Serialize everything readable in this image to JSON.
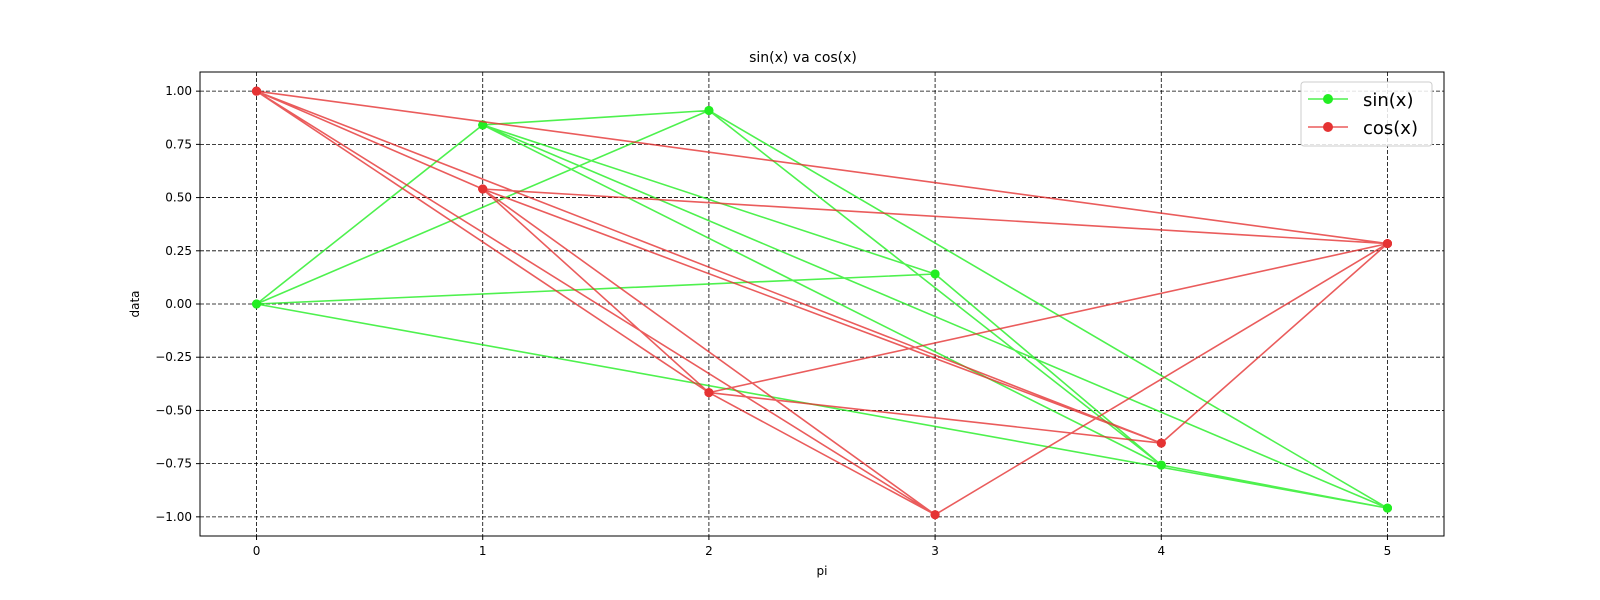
{
  "chart_data": {
    "type": "line",
    "title": "sin(x) va cos(x)",
    "xlabel": "pi",
    "ylabel": "data",
    "xlim": [
      -0.25,
      5.25
    ],
    "ylim": [
      -1.09,
      1.09
    ],
    "xticks": [
      0,
      1,
      2,
      3,
      4,
      5
    ],
    "xtick_labels": [
      "0",
      "1",
      "2",
      "3",
      "4",
      "5"
    ],
    "yticks": [
      1.0,
      0.75,
      0.5,
      0.25,
      0.0,
      -0.25,
      -0.5,
      -0.75,
      -1.0
    ],
    "ytick_labels": [
      "1.00",
      "0.75",
      "0.50",
      "0.25",
      "0.00",
      "−0.25",
      "−0.50",
      "−0.75",
      "−1.00"
    ],
    "grid": true,
    "legend_position": "top-right",
    "series": [
      {
        "name": "sin(x)",
        "color": "#22ee22",
        "x": [
          0,
          1,
          2,
          5,
          4,
          3,
          0,
          2,
          4,
          1,
          5,
          0,
          1,
          4,
          2,
          5,
          1,
          3
        ],
        "y": [
          0,
          0.8415,
          0.9093,
          -0.9589,
          -0.7568,
          0.1411,
          0,
          0.9093,
          -0.7568,
          0.8415,
          -0.9589,
          0,
          0.8415,
          -0.7568,
          0.9093,
          -0.9589,
          0.8415,
          0.1411
        ]
      },
      {
        "name": "cos(x)",
        "color": "#e53333",
        "x": [
          0,
          1,
          5,
          2,
          4,
          0,
          3,
          5,
          1,
          4,
          0,
          2,
          3,
          1,
          0,
          4,
          5,
          2,
          1,
          3,
          0,
          5
        ],
        "y": [
          1,
          0.5403,
          0.2837,
          -0.4161,
          -0.6536,
          1,
          -0.99,
          0.2837,
          0.5403,
          -0.6536,
          1,
          -0.4161,
          -0.99,
          0.5403,
          1,
          -0.6536,
          0.2837,
          -0.4161,
          0.5403,
          -0.99,
          1,
          0.2837
        ]
      }
    ]
  }
}
